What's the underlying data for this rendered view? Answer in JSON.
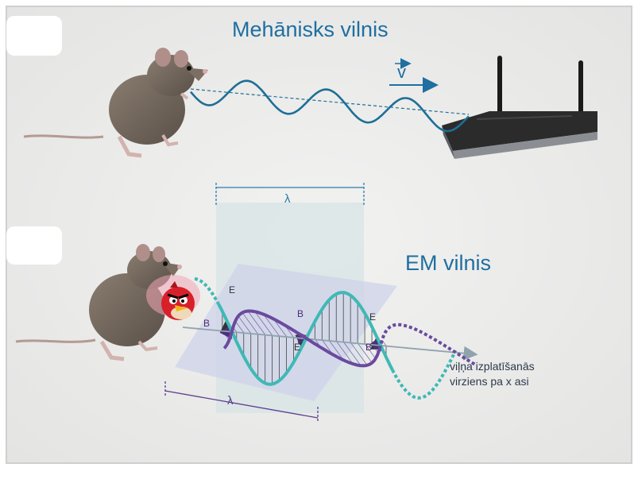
{
  "mechanical": {
    "title": "Mehānisks vilnis",
    "velocity_label": "v"
  },
  "em": {
    "title": "EM vilnis",
    "wavelength_top": "λ",
    "wavelength_bottom": "λ",
    "propagation_line1": "viļņa izplatīšanās",
    "propagation_line2": "virziens pa x asi",
    "e_label": "E",
    "b_label": "B"
  },
  "colors": {
    "mech_wave": "#1e6f96",
    "e_wave": "#3fb9b5",
    "b_wave": "#6a4a9e",
    "plane_e": "#d7e4e6",
    "plane_b": "#cfd3ea",
    "title_blue": "#1f6fa0"
  },
  "icons": [
    "rat-icon",
    "router-icon",
    "angry-bird-icon"
  ]
}
